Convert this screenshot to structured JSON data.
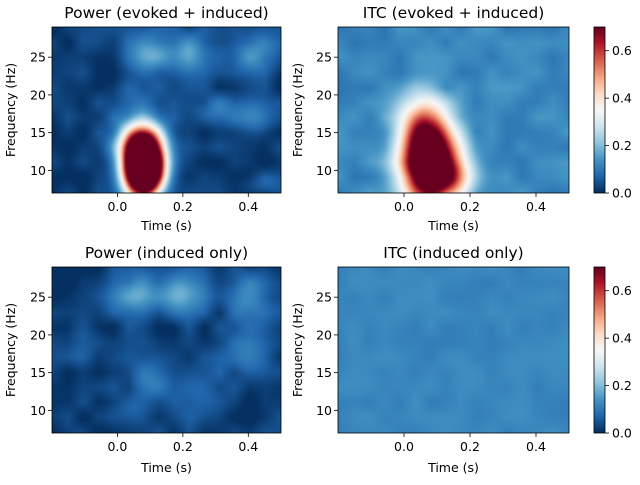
{
  "chart_data": [
    {
      "type": "heatmap",
      "title": "Power (evoked + induced)",
      "xlabel": "Time (s)",
      "ylabel": "Frequency (Hz)",
      "xlim": [
        -0.2,
        0.5
      ],
      "ylim": [
        7,
        29
      ],
      "xticks": [
        "0.0",
        "0.2",
        "0.4"
      ],
      "yticks": [
        "10",
        "15",
        "20",
        "25"
      ],
      "colormap": "RdBu_r",
      "clim": [
        0,
        0.7
      ],
      "blobs": [
        {
          "t": 0.08,
          "f": 10.5,
          "st": 0.04,
          "sf": 2.6,
          "a": 1.6
        },
        {
          "t": 0.07,
          "f": 14.0,
          "st": 0.05,
          "sf": 2.0,
          "a": 0.35
        },
        {
          "t": 0.1,
          "f": 25.5,
          "st": 0.05,
          "sf": 2.0,
          "a": 0.14
        },
        {
          "t": 0.22,
          "f": 25.5,
          "st": 0.05,
          "sf": 2.0,
          "a": 0.13
        },
        {
          "t": 0.42,
          "f": 25.5,
          "st": 0.05,
          "sf": 2.0,
          "a": 0.12
        },
        {
          "t": 0.3,
          "f": 18.0,
          "st": 0.05,
          "sf": 1.5,
          "a": 0.08
        },
        {
          "t": 0.42,
          "f": 17.0,
          "st": 0.04,
          "sf": 1.6,
          "a": 0.1
        },
        {
          "t": 0.05,
          "f": 19.0,
          "st": 0.05,
          "sf": 1.5,
          "a": 0.06
        },
        {
          "t": 0.45,
          "f": 8.0,
          "st": 0.05,
          "sf": 1.0,
          "a": 0.05
        }
      ]
    },
    {
      "type": "heatmap",
      "title": "ITC (evoked + induced)",
      "xlabel": "Time (s)",
      "ylabel": "Frequency (Hz)",
      "xlim": [
        -0.2,
        0.5
      ],
      "ylim": [
        7,
        29
      ],
      "xticks": [
        "0.0",
        "0.2",
        "0.4"
      ],
      "yticks": [
        "10",
        "15",
        "20",
        "25"
      ],
      "colormap": "RdBu_r",
      "clim": [
        0,
        0.7
      ],
      "colorbar_ticks": [
        "0.0",
        "0.2",
        "0.4",
        "0.6"
      ],
      "baseline": 0.12,
      "blobs": [
        {
          "t": 0.08,
          "f": 10.5,
          "st": 0.06,
          "sf": 3.5,
          "a": 0.9
        },
        {
          "t": 0.06,
          "f": 16.0,
          "st": 0.05,
          "sf": 2.8,
          "a": 0.35
        },
        {
          "t": 0.16,
          "f": 9.0,
          "st": 0.04,
          "sf": 1.5,
          "a": 0.15
        }
      ]
    },
    {
      "type": "heatmap",
      "title": "Power (induced only)",
      "xlabel": "Time (s)",
      "ylabel": "Frequency (Hz)",
      "xlim": [
        -0.2,
        0.5
      ],
      "ylim": [
        7,
        29
      ],
      "xticks": [
        "0.0",
        "0.2",
        "0.4"
      ],
      "yticks": [
        "10",
        "15",
        "20",
        "25"
      ],
      "colormap": "RdBu_r",
      "clim": [
        0,
        0.7
      ],
      "blobs": [
        {
          "t": 0.05,
          "f": 25.5,
          "st": 0.05,
          "sf": 2.0,
          "a": 0.14
        },
        {
          "t": 0.2,
          "f": 25.5,
          "st": 0.05,
          "sf": 2.0,
          "a": 0.16
        },
        {
          "t": 0.4,
          "f": 25.0,
          "st": 0.05,
          "sf": 2.5,
          "a": 0.13
        },
        {
          "t": 0.1,
          "f": 14.0,
          "st": 0.05,
          "sf": 2.0,
          "a": 0.08
        },
        {
          "t": 0.25,
          "f": 12.0,
          "st": 0.06,
          "sf": 2.5,
          "a": 0.06
        },
        {
          "t": 0.4,
          "f": 17.0,
          "st": 0.05,
          "sf": 2.0,
          "a": 0.09
        },
        {
          "t": -0.12,
          "f": 19.0,
          "st": 0.04,
          "sf": 2.0,
          "a": 0.04
        },
        {
          "t": 0.05,
          "f": 10.0,
          "st": 0.04,
          "sf": 1.5,
          "a": 0.05
        }
      ]
    },
    {
      "type": "heatmap",
      "title": "ITC (induced only)",
      "xlabel": "Time (s)",
      "ylabel": "Frequency (Hz)",
      "xlim": [
        -0.2,
        0.5
      ],
      "ylim": [
        7,
        29
      ],
      "xticks": [
        "0.0",
        "0.2",
        "0.4"
      ],
      "yticks": [
        "10",
        "15",
        "20",
        "25"
      ],
      "colormap": "RdBu_r",
      "clim": [
        0,
        0.7
      ],
      "colorbar_ticks": [
        "0.0",
        "0.2",
        "0.4",
        "0.6"
      ],
      "baseline": 0.12,
      "noise": 0.015,
      "blobs": []
    }
  ]
}
